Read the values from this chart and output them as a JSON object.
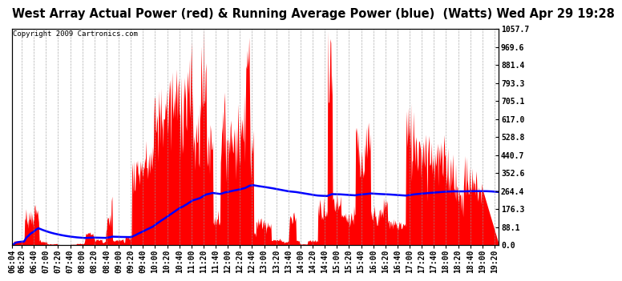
{
  "title": "West Array Actual Power (red) & Running Average Power (blue)  (Watts) Wed Apr 29 19:28",
  "copyright": "Copyright 2009 Cartronics.com",
  "ymax": 1057.7,
  "ymin": 0.0,
  "yticks": [
    0.0,
    88.1,
    176.3,
    264.4,
    352.6,
    440.7,
    528.8,
    617.0,
    705.1,
    793.3,
    881.4,
    969.6,
    1057.7
  ],
  "background_color": "#ffffff",
  "plot_bg_color": "#ffffff",
  "grid_color": "#999999",
  "bar_color": "#ff0000",
  "avg_color": "#0000ff",
  "title_fontsize": 10.5,
  "copyright_fontsize": 6.5,
  "tick_label_fontsize": 7,
  "x_start_min": 364,
  "x_end_min": 1167,
  "tick_interval_min": 20
}
